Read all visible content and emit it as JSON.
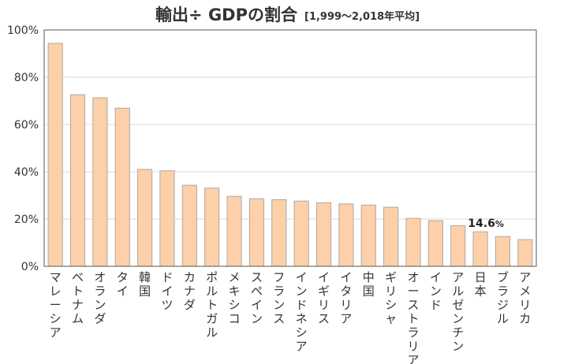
{
  "chart_data": {
    "type": "bar",
    "title": "輸出÷ GDPの割合",
    "subtitle": "[1,999～2,018年平均]",
    "xlabel": "",
    "ylabel": "",
    "ylim": [
      0,
      100
    ],
    "yticks": [
      "0%",
      "20%",
      "40%",
      "60%",
      "80%",
      "100%"
    ],
    "grid": true,
    "bar_color": "#fdd0aa",
    "bar_edge_color": "#b0a8a0",
    "categories": [
      "マレーシア",
      "ベトナム",
      "オランダ",
      "タイ",
      "韓国",
      "ドイツ",
      "カナダ",
      "ポルトガル",
      "メキシコ",
      "スペイン",
      "フランス",
      "インドネシア",
      "イギリス",
      "イタリア",
      "中国",
      "ギリシャ",
      "オーストラリア",
      "インド",
      "アルゼンチン",
      "日本",
      "ブラジル",
      "アメリカ"
    ],
    "values": [
      94.3,
      72.6,
      71.3,
      66.9,
      41.0,
      40.4,
      34.3,
      33.1,
      29.6,
      28.6,
      28.2,
      27.6,
      26.9,
      26.4,
      25.9,
      25.0,
      20.3,
      19.3,
      17.2,
      14.6,
      12.6,
      11.3
    ],
    "annotation": {
      "category": "日本",
      "value_text": "14.6",
      "unit_text": "%"
    }
  }
}
